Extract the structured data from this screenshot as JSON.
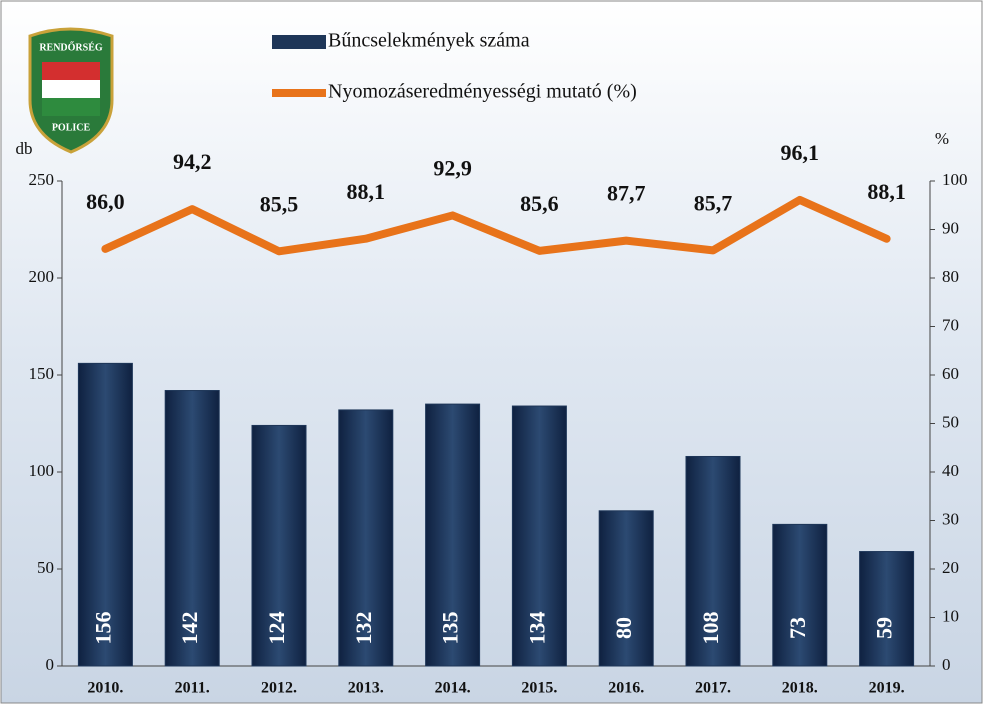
{
  "logo": {
    "top": "RENDŐRSÉG",
    "bottom": "POLICE"
  },
  "chart_data": {
    "type": "bar",
    "categories": [
      "2010.",
      "2011.",
      "2012.",
      "2013.",
      "2014.",
      "2015.",
      "2016.",
      "2017.",
      "2018.",
      "2019."
    ],
    "y_label": "db",
    "y2_label": "%",
    "ylim": [
      0,
      250
    ],
    "yticks": [
      0,
      50,
      100,
      150,
      200,
      250
    ],
    "y2lim": [
      0,
      100
    ],
    "y2ticks": [
      0,
      10,
      20,
      30,
      40,
      50,
      60,
      70,
      80,
      90,
      100
    ],
    "series": [
      {
        "name": "Bűncselekmények száma",
        "type": "bar",
        "color": "#1e3658",
        "values": [
          156,
          142,
          124,
          132,
          135,
          134,
          80,
          108,
          73,
          59
        ]
      },
      {
        "name": "Nyomozáseredményességi mutató (%)",
        "type": "line",
        "axis": "y2",
        "color": "#e8731a",
        "values": [
          86.0,
          94.2,
          85.5,
          88.1,
          92.9,
          85.6,
          87.7,
          85.7,
          96.1,
          88.1
        ],
        "value_labels": [
          "86,0",
          "94,2",
          "85,5",
          "88,1",
          "92,9",
          "85,6",
          "87,7",
          "85,7",
          "96,1",
          "88,1"
        ]
      }
    ]
  }
}
